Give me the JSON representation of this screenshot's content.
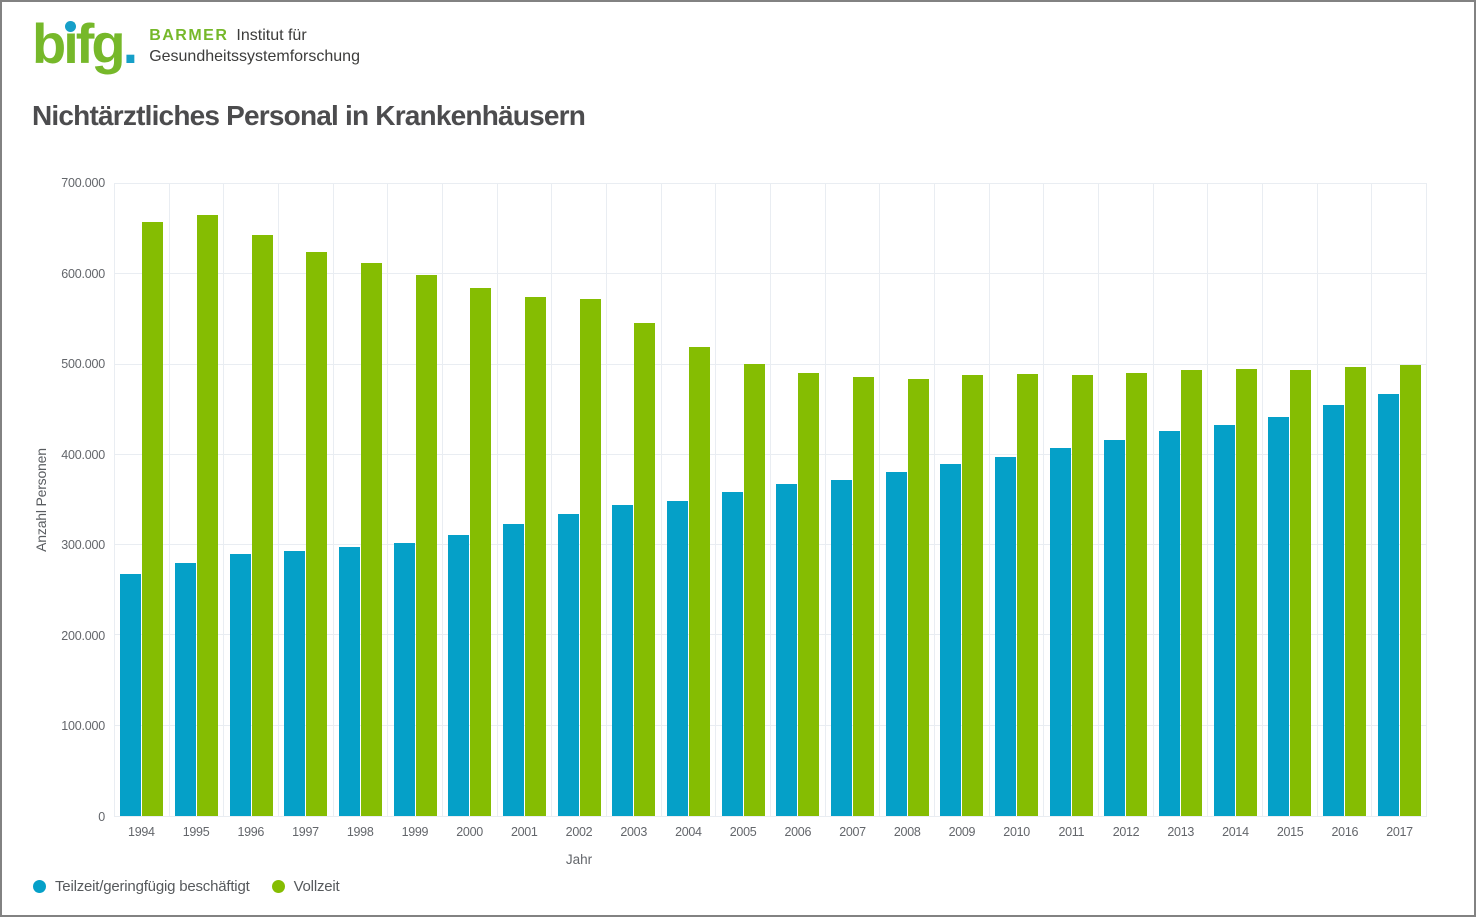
{
  "page": {
    "border_color": "#828282",
    "background": "#ffffff"
  },
  "logo": {
    "wordmark": "bifg",
    "wordmark_dot": ".",
    "brand": "BARMER",
    "line1": "Institut für",
    "line2": "Gesundheitssystemforschung",
    "green": "#76b82a",
    "blue": "#169fc8"
  },
  "title": "Nichtärztliches Personal in Krankenhäusern",
  "chart_data": {
    "type": "bar",
    "title": "Nichtärztliches Personal in Krankenhäusern",
    "categories": [
      "1994",
      "1995",
      "1996",
      "1997",
      "1998",
      "1999",
      "2000",
      "2001",
      "2002",
      "2003",
      "2004",
      "2005",
      "2006",
      "2007",
      "2008",
      "2009",
      "2010",
      "2011",
      "2012",
      "2013",
      "2014",
      "2015",
      "2016",
      "2017"
    ],
    "series": [
      {
        "name": "Teilzeit/geringfügig beschäftigt",
        "color": "#05a0c8",
        "values": [
          268000,
          280000,
          290000,
          293000,
          298000,
          302000,
          311000,
          323000,
          335000,
          344000,
          349000,
          359000,
          368000,
          372000,
          381000,
          390000,
          398000,
          408000,
          416000,
          426000,
          433000,
          442000,
          455000,
          467000
        ]
      },
      {
        "name": "Vollzeit",
        "color": "#85bd02",
        "values": [
          658000,
          666000,
          644000,
          625000,
          612000,
          599000,
          585000,
          575000,
          573000,
          546000,
          519000,
          501000,
          491000,
          486000,
          484000,
          488000,
          490000,
          488000,
          491000,
          494000,
          495000,
          494000,
          497000,
          500000
        ]
      }
    ],
    "xlabel": "Jahr",
    "ylabel": "Anzahl Personen",
    "ylim": [
      0,
      700000
    ],
    "ytick_step": 100000,
    "yticks": [
      {
        "value": 0,
        "label": "0"
      },
      {
        "value": 100000,
        "label": "100.000"
      },
      {
        "value": 200000,
        "label": "200.000"
      },
      {
        "value": 300000,
        "label": "300.000"
      },
      {
        "value": 400000,
        "label": "400.000"
      },
      {
        "value": 500000,
        "label": "500.000"
      },
      {
        "value": 600000,
        "label": "600.000"
      },
      {
        "value": 700000,
        "label": "700.000"
      }
    ],
    "grid": true,
    "legend_position": "bottom-left"
  }
}
